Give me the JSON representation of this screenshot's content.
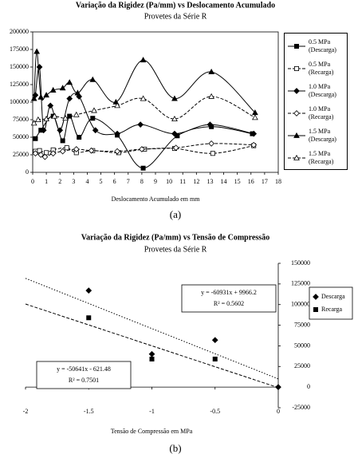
{
  "chart_data": [
    {
      "type": "line",
      "title": "Variação da Rigidez (Pa/mm) vs Deslocamento Acumulado",
      "subtitle": "Provetes da Série R",
      "x_label": "Deslocamento Acumulado em mm",
      "caption": "(a)",
      "xlim": [
        0,
        18
      ],
      "xticks": [
        0,
        1,
        2,
        3,
        4,
        5,
        6,
        7,
        8,
        9,
        10,
        11,
        12,
        13,
        14,
        15,
        16,
        17,
        18
      ],
      "ylim": [
        0,
        200000
      ],
      "yticks": [
        0,
        25000,
        50000,
        75000,
        100000,
        125000,
        150000,
        175000,
        200000
      ],
      "series": [
        {
          "name": "0.5 MPa (Descarga)",
          "color": "#000000",
          "marker": "square",
          "filled": true,
          "dash": "solid",
          "x": [
            0.2,
            0.6,
            1.5,
            2.2,
            2.7,
            3.4,
            4.4,
            6.2,
            8.1,
            10.6,
            13.1,
            16.1
          ],
          "values": [
            48000,
            60000,
            80000,
            45000,
            80000,
            50000,
            77000,
            53000,
            6000,
            52000,
            65000,
            55000
          ]
        },
        {
          "name": "0.5 MPa (Recarga)",
          "color": "#000000",
          "marker": "square",
          "filled": false,
          "dash": "dashed",
          "x": [
            0.2,
            0.5,
            1.0,
            1.5,
            2.5,
            3.2,
            4.4,
            6.3,
            8.2,
            10.4,
            13.2,
            16.2
          ],
          "values": [
            30000,
            31000,
            28000,
            32000,
            35000,
            28000,
            31000,
            28000,
            33000,
            34000,
            27000,
            38000
          ]
        },
        {
          "name": "1.0 MPa (Descarga)",
          "color": "#000000",
          "marker": "diamond",
          "filled": true,
          "dash": "solid",
          "x": [
            0.2,
            0.5,
            0.8,
            1.3,
            2.0,
            2.7,
            3.4,
            4.6,
            6.2,
            7.9,
            10.4,
            13.0,
            16.2
          ],
          "values": [
            110000,
            150000,
            60000,
            95000,
            60000,
            105000,
            108000,
            60000,
            55000,
            68000,
            55000,
            68000,
            55000
          ]
        },
        {
          "name": "1.0 MPa (Recarga)",
          "color": "#000000",
          "marker": "diamond",
          "filled": false,
          "dash": "dashed",
          "x": [
            0.2,
            0.6,
            0.9,
            1.5,
            2.2,
            3.2,
            4.3,
            6.2,
            8.0,
            10.5,
            13.1,
            16.2
          ],
          "values": [
            27000,
            25000,
            22000,
            27000,
            30000,
            33000,
            31000,
            30000,
            33000,
            35000,
            41000,
            39000
          ]
        },
        {
          "name": "1.5 MPa (Descarga)",
          "color": "#000000",
          "marker": "triangle",
          "filled": true,
          "dash": "solid",
          "x": [
            0.1,
            0.3,
            0.6,
            1.0,
            1.5,
            2.2,
            2.7,
            3.3,
            4.4,
            6.1,
            8.1,
            10.4,
            13.1,
            16.3
          ],
          "values": [
            105000,
            172000,
            107000,
            110000,
            117000,
            120000,
            128000,
            113000,
            132000,
            100000,
            160000,
            105000,
            143000,
            85000
          ]
        },
        {
          "name": "1.5 MPa (Recarga)",
          "color": "#000000",
          "marker": "triangle",
          "filled": false,
          "dash": "dashed",
          "x": [
            0.1,
            0.4,
            1.0,
            1.6,
            2.4,
            3.2,
            4.5,
            6.2,
            8.1,
            10.4,
            13.1,
            16.3
          ],
          "values": [
            70000,
            75000,
            76000,
            80000,
            77000,
            82000,
            88000,
            95000,
            105000,
            76000,
            108000,
            78000
          ]
        }
      ]
    },
    {
      "type": "scatter",
      "title": "Variação da Rigidez (Pa/mm) vs Tensão de Compressão",
      "subtitle": "Provetes da Série R",
      "x_label": "Tensão de Compressão em MPa",
      "caption": "(b)",
      "xlim": [
        -2,
        0
      ],
      "xticks": [
        -2,
        -1.5,
        -1,
        -0.5,
        0
      ],
      "ylim": [
        -25000,
        150000
      ],
      "yticks": [
        -25000,
        0,
        25000,
        50000,
        75000,
        100000,
        125000,
        150000
      ],
      "series": [
        {
          "name": "Descarga",
          "color": "#000000",
          "marker": "diamond",
          "x": [
            -1.5,
            -1,
            -0.5,
            0
          ],
          "values": [
            117000,
            40000,
            57000,
            0
          ]
        },
        {
          "name": "Recarga",
          "color": "#000000",
          "marker": "square",
          "x": [
            -1.5,
            -1,
            -0.5
          ],
          "values": [
            84000,
            34000,
            34000
          ]
        }
      ],
      "trendlines": [
        {
          "slope": -60931,
          "intercept": 9966.2,
          "dash": "dotted",
          "equation": "y = -60931x + 9966.2",
          "r2": "R² = 0.5602"
        },
        {
          "slope": -50641,
          "intercept": -621.48,
          "dash": "dashed",
          "equation": "y = -50641x - 621.48",
          "r2": "R² = 0.7501"
        }
      ]
    }
  ]
}
